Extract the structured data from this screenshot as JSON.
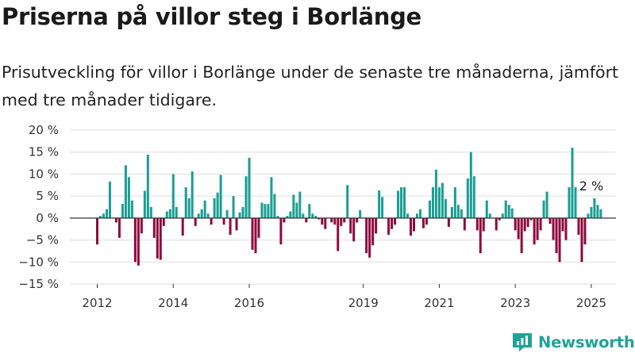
{
  "title": "Priserna på villor steg i Borlänge",
  "subtitle": "Prisutveckling för villor i Borlänge under de senaste tre månaderna, jämfört med tre månader tidigare.",
  "brand": {
    "name": "Newsworthy",
    "icon": "newsworthy-logo-icon"
  },
  "colors": {
    "positive": "#1a9e94",
    "negative": "#8f0a3c",
    "axis": "#333333",
    "grid": "#dddddd",
    "brand": "#1fa398"
  },
  "chart_data": {
    "type": "bar",
    "title": "",
    "xlabel": "",
    "ylabel": "",
    "ylim": [
      -15,
      20
    ],
    "y_ticks": [
      20,
      15,
      10,
      5,
      0,
      -5,
      -10,
      -15
    ],
    "y_tick_labels": [
      "20 %",
      "15 %",
      "10 %",
      "5 %",
      "0 %",
      "−5 %",
      "−10 %",
      "−15 %"
    ],
    "x_tick_labels": [
      "2012",
      "2014",
      "2016",
      "2019",
      "2021",
      "2023",
      "2025"
    ],
    "x_tick_dates": [
      "2012-01",
      "2014-01",
      "2016-01",
      "2019-01",
      "2021-01",
      "2023-01",
      "2025-01"
    ],
    "start": "2012-01",
    "end": "2024-12",
    "grid": true,
    "annotation": {
      "text": "2 %",
      "date": "2024-12",
      "value": 2
    },
    "values": [
      -6,
      0.5,
      1,
      2,
      8.3,
      0,
      -1,
      -4.5,
      3.2,
      12,
      9.3,
      4,
      -10,
      -10.8,
      -3.5,
      6.2,
      14.4,
      2.5,
      -4.5,
      -9.2,
      -9.5,
      -1.8,
      1.5,
      2,
      10,
      2.5,
      0,
      -4,
      7,
      4.5,
      10.6,
      -1.8,
      1,
      2,
      4,
      1,
      -1.5,
      4.5,
      5.8,
      9.8,
      -1.5,
      1.8,
      -3.8,
      5,
      -2.8,
      1.3,
      2.5,
      9.5,
      13.7,
      -7.2,
      -8,
      -4.5,
      3.5,
      3.2,
      3.2,
      9.3,
      5.5,
      0.5,
      -6,
      -1,
      0.5,
      1.5,
      5.3,
      3.5,
      6,
      1,
      -1,
      3.2,
      1,
      0.5,
      -0.3,
      -1.5,
      -2.5,
      0,
      -1,
      -1.5,
      -7.5,
      -1.8,
      -1,
      7.5,
      -3.5,
      -5.3,
      -1,
      1.8,
      0,
      -8,
      -9,
      -6.2,
      -3.5,
      6.3,
      4.8,
      0,
      -3.8,
      -2.5,
      -1.5,
      6.2,
      7,
      7,
      1,
      -4,
      -3,
      1,
      2,
      -2.3,
      -1.5,
      4,
      7,
      11,
      7,
      8,
      4.3,
      -2,
      2.5,
      7,
      3,
      2,
      -2.8,
      9,
      15,
      9.5,
      -2.8,
      -8,
      -3,
      4,
      1,
      0,
      -2.8,
      -0.5,
      1,
      4,
      3,
      2.2,
      -2.8,
      -4.8,
      -8,
      -3,
      -2,
      -0.5,
      -6,
      -5,
      -2.8,
      4,
      6,
      -1.3,
      -5,
      -8,
      -10,
      -3,
      -5,
      7,
      16,
      7,
      -3.8,
      -10,
      -6,
      1,
      2.5,
      4.5,
      3,
      2
    ]
  }
}
